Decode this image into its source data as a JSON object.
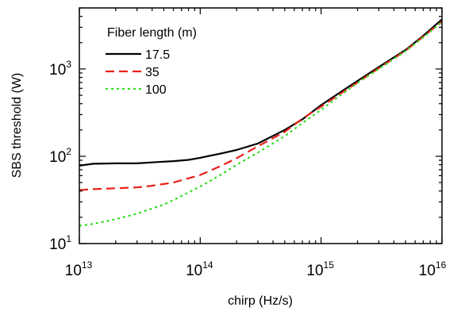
{
  "chart_data": {
    "type": "line",
    "xlabel": "chirp (Hz/s)",
    "ylabel": "SBS threshold (W)",
    "xscale": "log",
    "yscale": "log",
    "xlim": [
      10000000000000.0,
      1e+16
    ],
    "ylim": [
      10,
      5000
    ],
    "x_ticks": [
      {
        "base": "10",
        "exp": "13",
        "value": 10000000000000.0
      },
      {
        "base": "10",
        "exp": "14",
        "value": 100000000000000.0
      },
      {
        "base": "10",
        "exp": "15",
        "value": 1000000000000000.0
      },
      {
        "base": "10",
        "exp": "16",
        "value": 1e+16
      }
    ],
    "y_ticks": [
      {
        "base": "10",
        "exp": "1",
        "value": 10
      },
      {
        "base": "10",
        "exp": "2",
        "value": 100
      },
      {
        "base": "10",
        "exp": "3",
        "value": 1000
      }
    ],
    "grid": false,
    "legend": {
      "title": "Fiber length (m)",
      "placement": "top-left"
    },
    "series": [
      {
        "name": "17.5",
        "color": "#000000",
        "style": "solid",
        "points": [
          [
            10000000000000.0,
            78
          ],
          [
            13000000000000.0,
            82
          ],
          [
            20000000000000.0,
            83
          ],
          [
            30000000000000.0,
            83
          ],
          [
            45000000000000.0,
            86
          ],
          [
            60000000000000.0,
            88
          ],
          [
            80000000000000.0,
            91
          ],
          [
            100000000000000.0,
            96
          ],
          [
            150000000000000.0,
            108
          ],
          [
            200000000000000.0,
            118
          ],
          [
            300000000000000.0,
            140
          ],
          [
            500000000000000.0,
            200
          ],
          [
            700000000000000.0,
            265
          ],
          [
            1000000000000000.0,
            385
          ],
          [
            1500000000000000.0,
            560
          ],
          [
            2000000000000000.0,
            730
          ],
          [
            3000000000000000.0,
            1050
          ],
          [
            5000000000000000.0,
            1650
          ],
          [
            7000000000000000.0,
            2400
          ],
          [
            1e+16,
            3700
          ]
        ]
      },
      {
        "name": "35",
        "color": "#e8201a",
        "style": "dashed",
        "points": [
          [
            10000000000000.0,
            41
          ],
          [
            13000000000000.0,
            42
          ],
          [
            20000000000000.0,
            43
          ],
          [
            30000000000000.0,
            44
          ],
          [
            40000000000000.0,
            46
          ],
          [
            60000000000000.0,
            50
          ],
          [
            80000000000000.0,
            56
          ],
          [
            100000000000000.0,
            61
          ],
          [
            150000000000000.0,
            78
          ],
          [
            200000000000000.0,
            95
          ],
          [
            300000000000000.0,
            130
          ],
          [
            500000000000000.0,
            190
          ],
          [
            700000000000000.0,
            270
          ],
          [
            1000000000000000.0,
            370
          ],
          [
            1500000000000000.0,
            540
          ],
          [
            2000000000000000.0,
            700
          ],
          [
            3000000000000000.0,
            1020
          ],
          [
            5000000000000000.0,
            1620
          ],
          [
            7000000000000000.0,
            2350
          ],
          [
            1e+16,
            3500
          ]
        ]
      },
      {
        "name": "100",
        "color": "#33dd22",
        "style": "dotted",
        "points": [
          [
            10000000000000.0,
            16
          ],
          [
            12000000000000.0,
            16.5
          ],
          [
            15000000000000.0,
            17.5
          ],
          [
            20000000000000.0,
            19
          ],
          [
            30000000000000.0,
            22
          ],
          [
            50000000000000.0,
            28
          ],
          [
            70000000000000.0,
            35
          ],
          [
            100000000000000.0,
            45
          ],
          [
            150000000000000.0,
            62
          ],
          [
            200000000000000.0,
            80
          ],
          [
            300000000000000.0,
            110
          ],
          [
            500000000000000.0,
            170
          ],
          [
            700000000000000.0,
            240
          ],
          [
            1000000000000000.0,
            340
          ],
          [
            1500000000000000.0,
            520
          ],
          [
            2000000000000000.0,
            690
          ],
          [
            3000000000000000.0,
            1000
          ],
          [
            5000000000000000.0,
            1600
          ],
          [
            7000000000000000.0,
            2300
          ],
          [
            1e+16,
            3450
          ]
        ]
      }
    ]
  }
}
